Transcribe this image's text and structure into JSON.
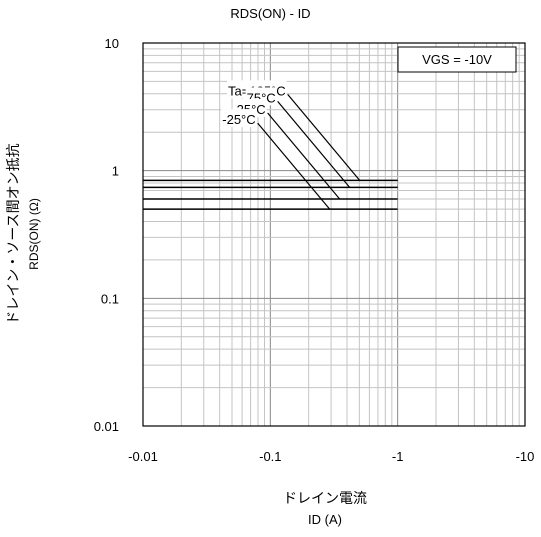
{
  "chart_data": {
    "type": "line",
    "title": "RDS(ON) - ID",
    "xlabel": "ドレイン電流",
    "xlabel_unit": "ID (A)",
    "ylabel": "ドレイン・ソース間オン抵抗",
    "ylabel_unit": "RDS(ON) (Ω)",
    "x_scale": "log",
    "y_scale": "log",
    "x_ticks": [
      "-0.01",
      "-0.1",
      "-1",
      "-10"
    ],
    "y_ticks": [
      "10",
      "1",
      "0.1",
      "0.01"
    ],
    "xlim": [
      -0.01,
      -10
    ],
    "ylim": [
      0.01,
      10
    ],
    "grid": true,
    "legend_box": "VGS = -10V",
    "series": [
      {
        "name": "Ta=125°C",
        "x": [
          -0.01,
          -1
        ],
        "y": [
          0.84,
          0.84
        ]
      },
      {
        "name": "75°C",
        "x": [
          -0.01,
          -1
        ],
        "y": [
          0.74,
          0.74
        ]
      },
      {
        "name": "25°C",
        "x": [
          -0.01,
          -1
        ],
        "y": [
          0.6,
          0.6
        ]
      },
      {
        "name": "-25°C",
        "x": [
          -0.01,
          -1
        ],
        "y": [
          0.5,
          0.5
        ]
      }
    ]
  }
}
